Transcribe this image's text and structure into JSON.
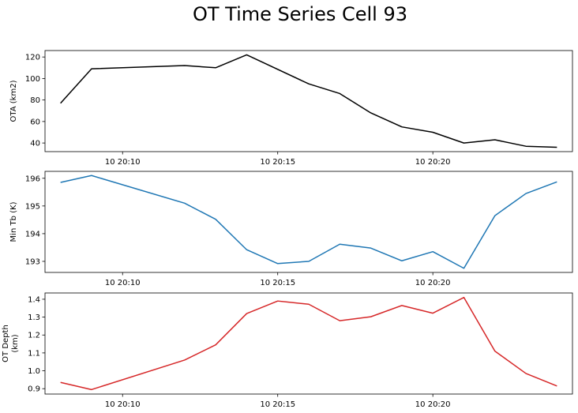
{
  "title": "OT Time Series Cell 93",
  "chart_data": [
    {
      "type": "line",
      "ylabel": "OTA (km2)",
      "color": "#000000",
      "x": [
        "20:08",
        "20:09",
        "20:12",
        "20:13",
        "20:14",
        "20:16",
        "20:17",
        "20:18",
        "20:19",
        "20:20",
        "20:21",
        "20:22",
        "20:23",
        "20:24"
      ],
      "y": [
        77,
        109,
        112,
        110,
        122,
        95,
        86,
        68,
        55,
        50,
        40,
        43,
        37,
        36
      ],
      "xlim": [
        "20:07:30",
        "20:24:30"
      ],
      "ylim": [
        32,
        126
      ],
      "yticks": [
        40,
        60,
        80,
        100,
        120
      ],
      "ytick_labels": [
        "40",
        "60",
        "80",
        "100",
        "120"
      ],
      "xticks": [
        "20:10",
        "20:15",
        "20:20"
      ],
      "xtick_labels": [
        "10 20:10",
        "10 20:15",
        "10 20:20"
      ]
    },
    {
      "type": "line",
      "ylabel": "Min Tb (K)",
      "color": "#1f77b4",
      "x": [
        "20:08",
        "20:09",
        "20:12",
        "20:13",
        "20:14",
        "20:15",
        "20:16",
        "20:17",
        "20:18",
        "20:19",
        "20:20",
        "20:21",
        "20:22",
        "20:23",
        "20:24"
      ],
      "y": [
        195.85,
        196.1,
        195.1,
        194.52,
        193.42,
        192.92,
        193.0,
        193.62,
        193.48,
        193.02,
        193.35,
        192.75,
        194.65,
        195.45,
        195.87
      ],
      "xlim": [
        "20:07:30",
        "20:24:30"
      ],
      "ylim": [
        192.6,
        196.25
      ],
      "yticks": [
        193,
        194,
        195,
        196
      ],
      "ytick_labels": [
        "193",
        "194",
        "195",
        "196"
      ],
      "xticks": [
        "20:10",
        "20:15",
        "20:20"
      ],
      "xtick_labels": [
        "10 20:10",
        "10 20:15",
        "10 20:20"
      ]
    },
    {
      "type": "line",
      "ylabel": "OT Depth\n(km)",
      "color": "#d62728",
      "x": [
        "20:08",
        "20:09",
        "20:12",
        "20:13",
        "20:14",
        "20:15",
        "20:16",
        "20:17",
        "20:18",
        "20:19",
        "20:20",
        "20:21",
        "20:22",
        "20:23",
        "20:24"
      ],
      "y": [
        0.935,
        0.895,
        1.06,
        1.145,
        1.32,
        1.39,
        1.372,
        1.28,
        1.302,
        1.365,
        1.322,
        1.41,
        1.11,
        0.985,
        0.915
      ],
      "xlim": [
        "20:07:30",
        "20:24:30"
      ],
      "ylim": [
        0.87,
        1.435
      ],
      "yticks": [
        0.9,
        1.0,
        1.1,
        1.2,
        1.3,
        1.4
      ],
      "ytick_labels": [
        "0.9",
        "1.0",
        "1.1",
        "1.2",
        "1.3",
        "1.4"
      ],
      "xticks": [
        "20:10",
        "20:15",
        "20:20"
      ],
      "xtick_labels": [
        "10 20:10",
        "10 20:15",
        "10 20:20"
      ]
    }
  ]
}
